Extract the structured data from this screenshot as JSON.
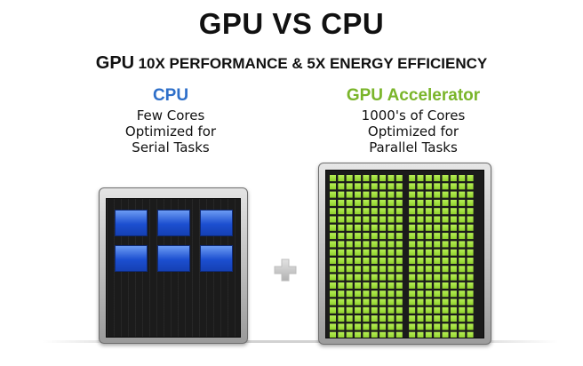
{
  "title": "GPU VS CPU",
  "subtitle": {
    "gpu": "GPU",
    "claim": "10X PERFORMANCE & 5X ENERGY EFFICIENCY"
  },
  "cpu": {
    "heading": "CPU",
    "lines": [
      "Few Cores",
      "Optimized for",
      "Serial Tasks"
    ],
    "core_rows": 2,
    "core_cols": 3,
    "core_color": "#2a5fd8"
  },
  "gpu": {
    "heading": "GPU Accelerator",
    "lines": [
      "1000's of Cores",
      "Optimized for",
      "Parallel Tasks"
    ],
    "core_rows": 20,
    "core_cols": 17,
    "core_color": "#8fd12c"
  },
  "colors": {
    "cpu_heading": "#2e6fc9",
    "gpu_heading": "#7ab52a",
    "plus_icon": "#c8c8c8"
  }
}
